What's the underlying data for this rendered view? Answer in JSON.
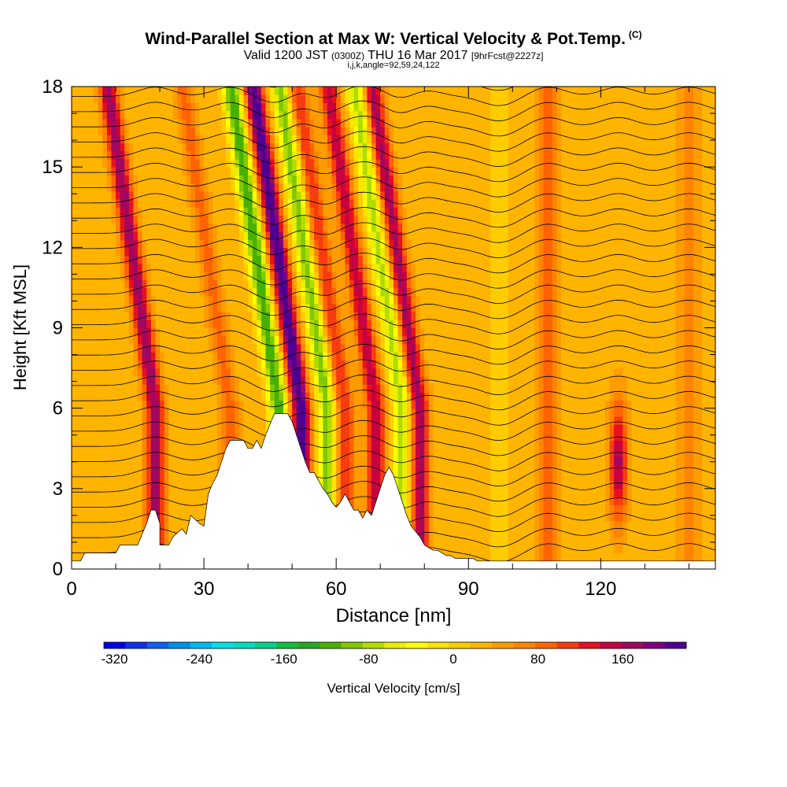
{
  "header": {
    "title": "Wind-Parallel Section at Max W: Vertical Velocity & Pot.Temp.",
    "copyright": "(C)",
    "valid_label": "Valid 1200 JST",
    "utc_label": "(0300Z)",
    "date_label": "THU 16 Mar 2017",
    "fcst_label": "[9hrFcst@2227z]",
    "indices": "i,j,k,angle=92,59,24,122"
  },
  "chart_data": {
    "type": "heatmap",
    "xlabel": "Distance [nm]",
    "ylabel": "Height [Kft MSL]",
    "xlim": [
      0,
      146
    ],
    "ylim": [
      0,
      18
    ],
    "x_ticks": [
      0,
      30,
      60,
      90,
      120
    ],
    "y_ticks": [
      0,
      3,
      6,
      9,
      12,
      15,
      18
    ],
    "grid": false,
    "fill_variable": "Vertical Velocity [cm/s]",
    "contour_variable": "Potential temperature",
    "colorbar": {
      "label": "Vertical Velocity [cm/s]",
      "min": -330,
      "max": 220,
      "step": 20,
      "tick_values": [
        -320,
        -240,
        -160,
        -80,
        0,
        80,
        160
      ],
      "tick_labels": [
        "-320",
        "-240",
        "-160",
        "-80",
        "0",
        "80",
        "160"
      ],
      "colors": [
        "#0000ee",
        "#1030f0",
        "#1060f0",
        "#0090f0",
        "#00b8f0",
        "#00e0e8",
        "#00dcc0",
        "#00d088",
        "#10c040",
        "#28a820",
        "#48b000",
        "#80c800",
        "#b0dc00",
        "#e8f000",
        "#ffff00",
        "#ffe400",
        "#ffcc00",
        "#ffb400",
        "#ff9c00",
        "#ff8400",
        "#ff6400",
        "#f83c10",
        "#e81020",
        "#c80040",
        "#a00860",
        "#800080",
        "#500090"
      ]
    },
    "updrafts": [
      {
        "x": 19,
        "w_peak": 150
      },
      {
        "x": 36,
        "w_peak": 60
      },
      {
        "x": 52,
        "w_peak": 200
      },
      {
        "x": 62,
        "w_peak": 90
      },
      {
        "x": 69,
        "w_peak": 130
      },
      {
        "x": 79,
        "w_peak": 140
      },
      {
        "x": 108,
        "w_peak": 70
      },
      {
        "x": 124,
        "w_peak": 140
      },
      {
        "x": 140,
        "w_peak": 50
      }
    ],
    "downdrafts": [
      {
        "x": 47,
        "w_peak": -150
      },
      {
        "x": 58,
        "w_peak": -120
      },
      {
        "x": 75,
        "w_peak": -100
      },
      {
        "x": 97,
        "w_peak": -30
      }
    ],
    "terrain": {
      "x": [
        0,
        2,
        3,
        10,
        11,
        15,
        16,
        17,
        18,
        19,
        20,
        20,
        22,
        23,
        25,
        26,
        27,
        29,
        30,
        31,
        32,
        33,
        34,
        35,
        36,
        37,
        38,
        39,
        40,
        41,
        42,
        43,
        44,
        45,
        46,
        47,
        48,
        49,
        50,
        51,
        52,
        53,
        54,
        55,
        56,
        57,
        58,
        59,
        60,
        61,
        62,
        63,
        64,
        65,
        66,
        67,
        68,
        69,
        70,
        71,
        72,
        73,
        74,
        75,
        76,
        77,
        78,
        79,
        80,
        81,
        82,
        83,
        84,
        85,
        86,
        87,
        88,
        89,
        90,
        91,
        92,
        93,
        94,
        146
      ],
      "h": [
        0.3,
        0.3,
        0.6,
        0.6,
        0.9,
        0.9,
        1.3,
        1.7,
        2.2,
        2.2,
        1.7,
        0.9,
        0.9,
        1.2,
        1.5,
        1.3,
        2.0,
        1.7,
        1.6,
        2.8,
        3.2,
        3.5,
        4.0,
        4.5,
        4.8,
        4.8,
        4.8,
        4.8,
        4.5,
        4.5,
        4.8,
        4.5,
        5.0,
        5.4,
        5.8,
        5.8,
        5.8,
        5.8,
        5.5,
        5.0,
        4.5,
        4.0,
        3.6,
        3.6,
        3.3,
        3.0,
        2.8,
        2.5,
        2.3,
        2.5,
        2.8,
        2.5,
        2.2,
        2.2,
        1.9,
        2.2,
        2.0,
        2.5,
        3.0,
        3.5,
        3.8,
        3.5,
        3.0,
        2.5,
        2.0,
        1.6,
        1.4,
        1.2,
        0.9,
        0.8,
        0.7,
        0.7,
        0.6,
        0.5,
        0.5,
        0.4,
        0.4,
        0.4,
        0.4,
        0.4,
        0.3,
        0.3,
        0.3,
        0.3
      ]
    },
    "isentrope_levels": 32
  }
}
